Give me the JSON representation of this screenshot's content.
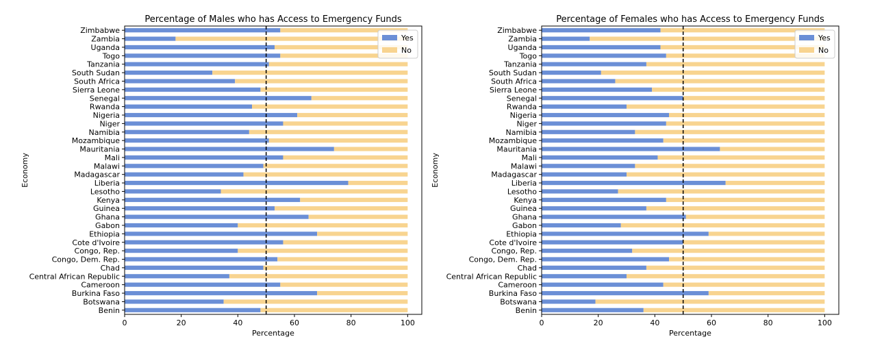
{
  "colors": {
    "yes": "#6b8fd6",
    "no": "#f8d490",
    "threshold": "#000000"
  },
  "chart_data": [
    {
      "type": "bar",
      "orientation": "horizontal",
      "stacked": true,
      "title": "Percentage of Males who has Access to Emergency Funds",
      "xlabel": "Percentage",
      "ylabel": "Economy",
      "xlim": [
        0,
        105
      ],
      "xticks": [
        0,
        20,
        40,
        60,
        80,
        100
      ],
      "threshold_line": 50,
      "legend": {
        "position": "top-right",
        "entries": [
          "Yes",
          "No"
        ]
      },
      "categories": [
        "Benin",
        "Botswana",
        "Burkina Faso",
        "Cameroon",
        "Central African Republic",
        "Chad",
        "Congo, Dem. Rep.",
        "Congo, Rep.",
        "Cote d'Ivoire",
        "Ethiopia",
        "Gabon",
        "Ghana",
        "Guinea",
        "Kenya",
        "Lesotho",
        "Liberia",
        "Madagascar",
        "Malawi",
        "Mali",
        "Mauritania",
        "Mozambique",
        "Namibia",
        "Niger",
        "Nigeria",
        "Rwanda",
        "Senegal",
        "Sierra Leone",
        "South Africa",
        "South Sudan",
        "Tanzania",
        "Togo",
        "Uganda",
        "Zambia",
        "Zimbabwe"
      ],
      "series": [
        {
          "name": "Yes",
          "values": [
            48,
            35,
            68,
            55,
            37,
            49,
            54,
            40,
            56,
            68,
            40,
            65,
            53,
            62,
            34,
            79,
            42,
            49,
            56,
            74,
            51,
            44,
            56,
            61,
            45,
            66,
            48,
            39,
            31,
            51,
            55,
            53,
            18,
            55
          ]
        },
        {
          "name": "No",
          "values": [
            52,
            65,
            32,
            45,
            63,
            51,
            46,
            60,
            44,
            32,
            60,
            35,
            47,
            38,
            66,
            21,
            58,
            51,
            44,
            26,
            49,
            56,
            44,
            39,
            55,
            34,
            52,
            61,
            69,
            49,
            45,
            47,
            82,
            45
          ]
        }
      ]
    },
    {
      "type": "bar",
      "orientation": "horizontal",
      "stacked": true,
      "title": "Percentage of Females who has Access to Emergency Funds",
      "xlabel": "Percentage",
      "ylabel": "Economy",
      "xlim": [
        0,
        105
      ],
      "xticks": [
        0,
        20,
        40,
        60,
        80,
        100
      ],
      "threshold_line": 50,
      "legend": {
        "position": "top-right",
        "entries": [
          "Yes",
          "No"
        ]
      },
      "categories": [
        "Benin",
        "Botswana",
        "Burkina Faso",
        "Cameroon",
        "Central African Republic",
        "Chad",
        "Congo, Dem. Rep.",
        "Congo, Rep.",
        "Cote d'Ivoire",
        "Ethiopia",
        "Gabon",
        "Ghana",
        "Guinea",
        "Kenya",
        "Lesotho",
        "Liberia",
        "Madagascar",
        "Malawi",
        "Mali",
        "Mauritania",
        "Mozambique",
        "Namibia",
        "Niger",
        "Nigeria",
        "Rwanda",
        "Senegal",
        "Sierra Leone",
        "South Africa",
        "South Sudan",
        "Tanzania",
        "Togo",
        "Uganda",
        "Zambia",
        "Zimbabwe"
      ],
      "series": [
        {
          "name": "Yes",
          "values": [
            36,
            19,
            59,
            43,
            30,
            37,
            45,
            32,
            50,
            59,
            28,
            51,
            37,
            44,
            27,
            65,
            30,
            33,
            41,
            63,
            43,
            33,
            44,
            45,
            30,
            50,
            39,
            26,
            21,
            37,
            44,
            42,
            17,
            42
          ]
        },
        {
          "name": "No",
          "values": [
            64,
            81,
            41,
            57,
            70,
            63,
            55,
            68,
            50,
            41,
            72,
            49,
            63,
            56,
            73,
            35,
            70,
            67,
            59,
            37,
            57,
            67,
            56,
            55,
            70,
            50,
            61,
            74,
            79,
            63,
            56,
            58,
            83,
            58
          ]
        }
      ]
    }
  ]
}
